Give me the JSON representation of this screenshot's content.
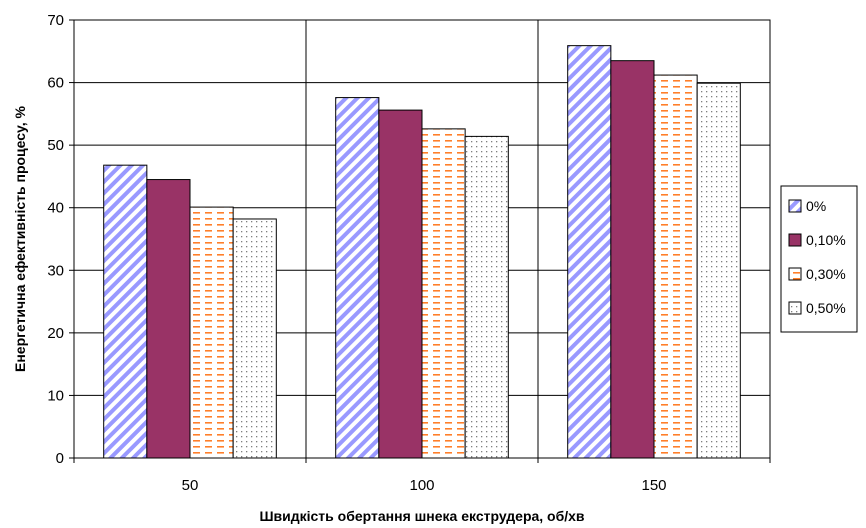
{
  "chart_data": {
    "type": "bar",
    "categories": [
      "50",
      "100",
      "150"
    ],
    "series": [
      {
        "name": "0%",
        "values": [
          46.8,
          57.6,
          65.9
        ],
        "color": "#9999ff",
        "pattern": "diagonal-stripes"
      },
      {
        "name": "0,10%",
        "values": [
          44.5,
          55.6,
          63.5
        ],
        "color": "#993366",
        "pattern": "solid"
      },
      {
        "name": "0,30%",
        "values": [
          40.1,
          52.6,
          61.2
        ],
        "color": "#ff9966",
        "pattern": "dashes"
      },
      {
        "name": "0,50%",
        "values": [
          38.2,
          51.4,
          59.9
        ],
        "color": "#c0c0c0",
        "pattern": "dots"
      }
    ],
    "title": "",
    "xlabel": "Швидкість обертання шнека екструдера, об/хв",
    "ylabel": "Енергетична ефективність процесу, %",
    "ylim": [
      0,
      70
    ],
    "yticks": [
      "0",
      "10",
      "20",
      "30",
      "40",
      "50",
      "60",
      "70"
    ],
    "grid": true,
    "legend_position": "right"
  }
}
